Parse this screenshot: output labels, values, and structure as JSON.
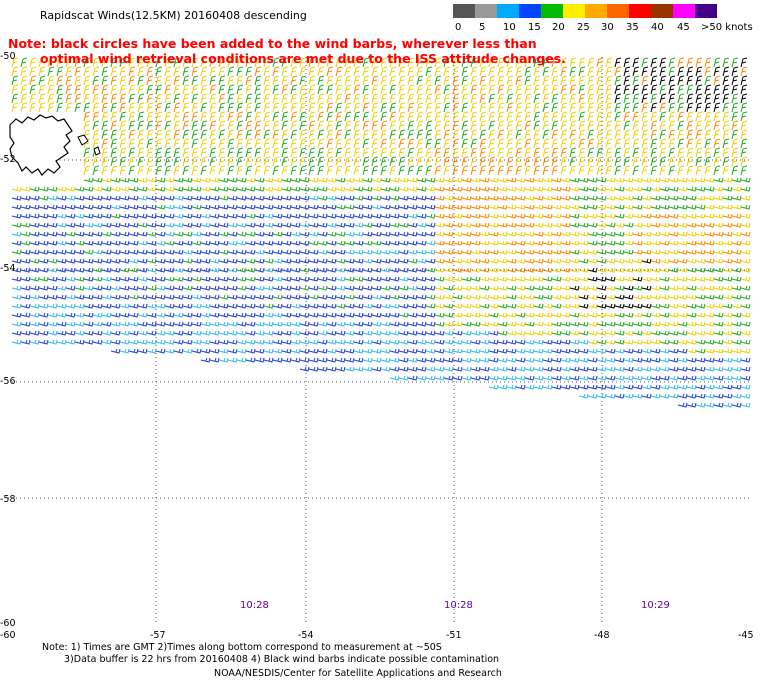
{
  "header": {
    "title": "Rapidscat Winds(12.5KM) 20160408 descending",
    "note_line1": "Note: black circles have been added to the wind barbs, wherever less than",
    "note_line2": "optimal wind retrieval conditions are met due to the ISS attitude changes."
  },
  "speed_scale": {
    "labels": [
      "0",
      "5",
      "10",
      "15",
      "20",
      "25",
      "30",
      "35",
      "40",
      "45",
      ">50 knots"
    ],
    "colors": [
      "#555555",
      "#999999",
      "#00aaff",
      "#0044ff",
      "#00bb00",
      "#ffee00",
      "#ffaa00",
      "#ff6600",
      "#ff0000",
      "#993300",
      "#ff00ff",
      "#440088"
    ]
  },
  "map": {
    "lat_labels": [
      "-50",
      "-52",
      "-54",
      "-56",
      "-58",
      "-60"
    ],
    "lon_labels": [
      "-60",
      "-57",
      "-54",
      "-51",
      "-48",
      "-45"
    ],
    "times": [
      "10:28",
      "10:28",
      "10:29"
    ],
    "palette": {
      "blue": "#1f3fd8",
      "lightblue": "#33bbee",
      "green": "#22aa22",
      "yellow": "#f0d000",
      "orange": "#ff8800",
      "black": "#000000",
      "gray": "#9999aa"
    }
  },
  "footer": {
    "line1": "Note: 1) Times are GMT  2)Times along bottom correspond to measurement at ~50S",
    "line2": "3)Data buffer is 22 hrs from 20160408  4) Black wind barbs indicate possible contamination",
    "credit": "NOAA/NESDIS/Center for Satellite Applications and Research"
  }
}
